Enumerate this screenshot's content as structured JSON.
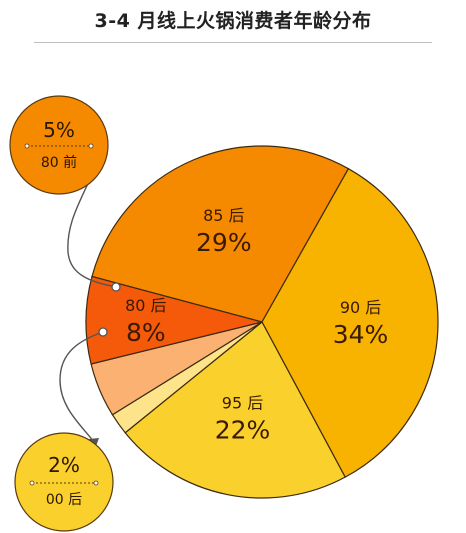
{
  "chart_data": {
    "type": "pie",
    "title": "3-4 月线上火锅消费者年龄分布",
    "slices": [
      {
        "name": "85 后",
        "pct_label": "29%",
        "value": 29,
        "color": "#f58a00"
      },
      {
        "name": "90 后",
        "pct_label": "34%",
        "value": 34,
        "color": "#f8b200"
      },
      {
        "name": "95 后",
        "pct_label": "22%",
        "value": 22,
        "color": "#fad12c"
      },
      {
        "name": "00 后",
        "pct_label": "2%",
        "value": 2,
        "color": "#fde48a"
      },
      {
        "name": "80 前",
        "pct_label": "5%",
        "value": 5,
        "color": "#fab171"
      },
      {
        "name": "80 后",
        "pct_label": "8%",
        "value": 8,
        "color": "#f45a0a"
      }
    ]
  },
  "callouts": {
    "top": {
      "pct": "5%",
      "name": "80 前",
      "color": "#f58a00"
    },
    "bottom": {
      "pct": "2%",
      "name": "00 后",
      "color": "#fad12c"
    }
  }
}
